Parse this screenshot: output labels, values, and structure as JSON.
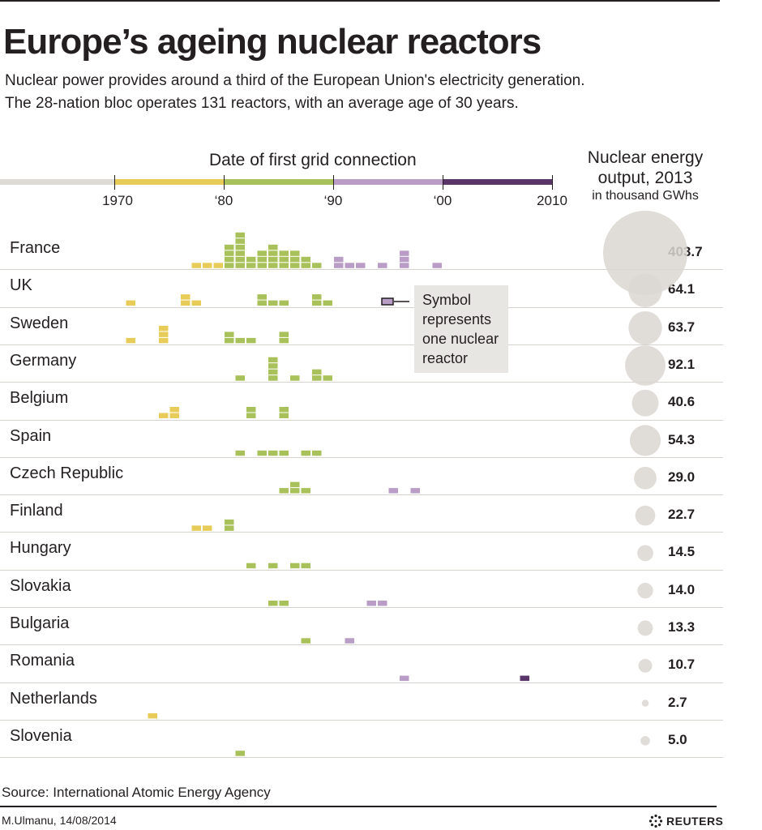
{
  "header": {
    "title": "Europe’s ageing nuclear reactors",
    "subtitle_line1": "Nuclear power provides around a third of the European Union's electricity generation.",
    "subtitle_line2": "The 28-nation bloc operates 131 reactors, with an average age of 30 years."
  },
  "colors": {
    "pre1970": "#dedbd6",
    "decade70s": "#e8cc5a",
    "decade80s": "#a8c15a",
    "decade90s": "#b99dc6",
    "decade00s": "#5a3569",
    "bubble": "#dad7d2",
    "legend_box": "#e8e6e2"
  },
  "chart_data": {
    "type": "table",
    "axis_title": "Date of first grid connection",
    "x_ticks": [
      "1970",
      "‘80",
      "‘90",
      "‘00",
      "2010"
    ],
    "x_tick_years": [
      1970,
      1980,
      1990,
      2000,
      2010
    ],
    "output_title_line1": "Nuclear energy",
    "output_title_line2": "output, 2013",
    "output_unit": "in thousand GWhs",
    "legend_text": [
      "Symbol",
      "represents",
      "one nuclear",
      "reactor"
    ],
    "rows": [
      {
        "country": "France",
        "output": 403.7,
        "output_label": "403.7",
        "reactors": [
          [
            1977,
            1
          ],
          [
            1978,
            1
          ],
          [
            1979,
            1
          ],
          [
            1980,
            4
          ],
          [
            1981,
            6
          ],
          [
            1982,
            2
          ],
          [
            1983,
            3
          ],
          [
            1984,
            4
          ],
          [
            1985,
            3
          ],
          [
            1986,
            3
          ],
          [
            1987,
            2
          ],
          [
            1988,
            1
          ],
          [
            1990,
            2
          ],
          [
            1991,
            1
          ],
          [
            1992,
            1
          ],
          [
            1994,
            1
          ],
          [
            1996,
            3
          ],
          [
            1999,
            1
          ]
        ]
      },
      {
        "country": "UK",
        "output": 64.1,
        "output_label": "64.1",
        "reactors": [
          [
            1971,
            1
          ],
          [
            1976,
            2
          ],
          [
            1977,
            1
          ],
          [
            1983,
            2
          ],
          [
            1984,
            1
          ],
          [
            1985,
            1
          ],
          [
            1988,
            2
          ],
          [
            1989,
            1
          ]
        ]
      },
      {
        "country": "Sweden",
        "output": 63.7,
        "output_label": "63.7",
        "reactors": [
          [
            1971,
            1
          ],
          [
            1974,
            3
          ],
          [
            1980,
            2
          ],
          [
            1981,
            1
          ],
          [
            1982,
            1
          ],
          [
            1985,
            2
          ]
        ]
      },
      {
        "country": "Germany",
        "output": 92.1,
        "output_label": "92.1",
        "reactors": [
          [
            1981,
            1
          ],
          [
            1984,
            4
          ],
          [
            1986,
            1
          ],
          [
            1988,
            2
          ],
          [
            1989,
            1
          ]
        ]
      },
      {
        "country": "Belgium",
        "output": 40.6,
        "output_label": "40.6",
        "reactors": [
          [
            1974,
            1
          ],
          [
            1975,
            2
          ],
          [
            1982,
            2
          ],
          [
            1985,
            2
          ]
        ]
      },
      {
        "country": "Spain",
        "output": 54.3,
        "output_label": "54.3",
        "reactors": [
          [
            1981,
            1
          ],
          [
            1983,
            1
          ],
          [
            1984,
            1
          ],
          [
            1985,
            1
          ],
          [
            1987,
            1
          ],
          [
            1988,
            1
          ]
        ]
      },
      {
        "country": "Czech Republic",
        "output": 29.0,
        "output_label": "29.0",
        "reactors": [
          [
            1985,
            1
          ],
          [
            1986,
            2
          ],
          [
            1987,
            1
          ],
          [
            1995,
            1
          ],
          [
            1997,
            1
          ]
        ]
      },
      {
        "country": "Finland",
        "output": 22.7,
        "output_label": "22.7",
        "reactors": [
          [
            1977,
            1
          ],
          [
            1978,
            1
          ],
          [
            1980,
            2
          ]
        ]
      },
      {
        "country": "Hungary",
        "output": 14.5,
        "output_label": "14.5",
        "reactors": [
          [
            1982,
            1
          ],
          [
            1984,
            1
          ],
          [
            1986,
            1
          ],
          [
            1987,
            1
          ]
        ]
      },
      {
        "country": "Slovakia",
        "output": 14.0,
        "output_label": "14.0",
        "reactors": [
          [
            1984,
            1
          ],
          [
            1985,
            1
          ],
          [
            1993,
            1
          ],
          [
            1994,
            1
          ]
        ]
      },
      {
        "country": "Bulgaria",
        "output": 13.3,
        "output_label": "13.3",
        "reactors": [
          [
            1987,
            1
          ],
          [
            1991,
            1
          ]
        ]
      },
      {
        "country": "Romania",
        "output": 10.7,
        "output_label": "10.7",
        "reactors": [
          [
            1996,
            1
          ],
          [
            2007,
            1
          ]
        ]
      },
      {
        "country": "Netherlands",
        "output": 2.7,
        "output_label": "2.7",
        "reactors": [
          [
            1973,
            1
          ]
        ]
      },
      {
        "country": "Slovenia",
        "output": 5.0,
        "output_label": "5.0",
        "reactors": [
          [
            1981,
            1
          ]
        ]
      }
    ]
  },
  "footer": {
    "source": "Source: International Atomic Energy Agency",
    "credit": "M.Ulmanu, 14/08/2014",
    "logo_text": "REUTERS"
  }
}
